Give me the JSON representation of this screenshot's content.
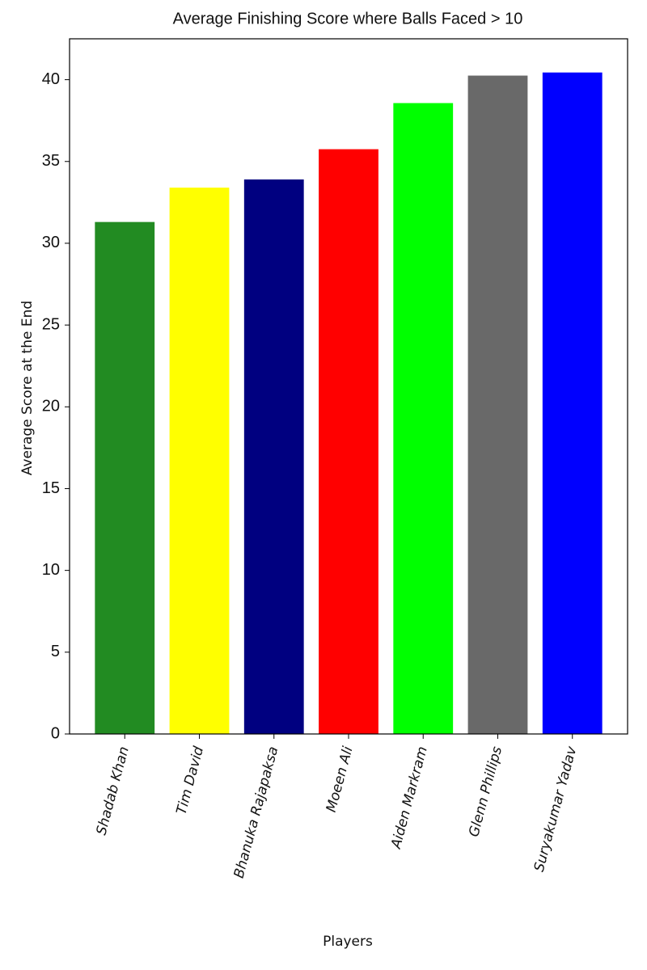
{
  "chart_data": {
    "type": "bar",
    "title": "Average Finishing Score where Balls Faced > 10",
    "xlabel": "Players",
    "ylabel": "Average Score at the End",
    "categories": [
      "Shadab Khan",
      "Tim David",
      "Bhanuka Rajapaksa",
      "Moeen Ali",
      "Aiden Markram",
      "Glenn Phillips",
      "Suryakumar Yadav"
    ],
    "values": [
      31.3,
      33.4,
      33.9,
      35.75,
      38.57,
      40.25,
      40.44
    ],
    "colors": [
      "#228b22",
      "#ffff00",
      "#000080",
      "#ff0000",
      "#00ff00",
      "#696969",
      "#0000ff"
    ],
    "ylim": [
      0,
      42.5
    ],
    "yticks": [
      0,
      5,
      10,
      15,
      20,
      25,
      30,
      35,
      40
    ],
    "grid": false
  }
}
